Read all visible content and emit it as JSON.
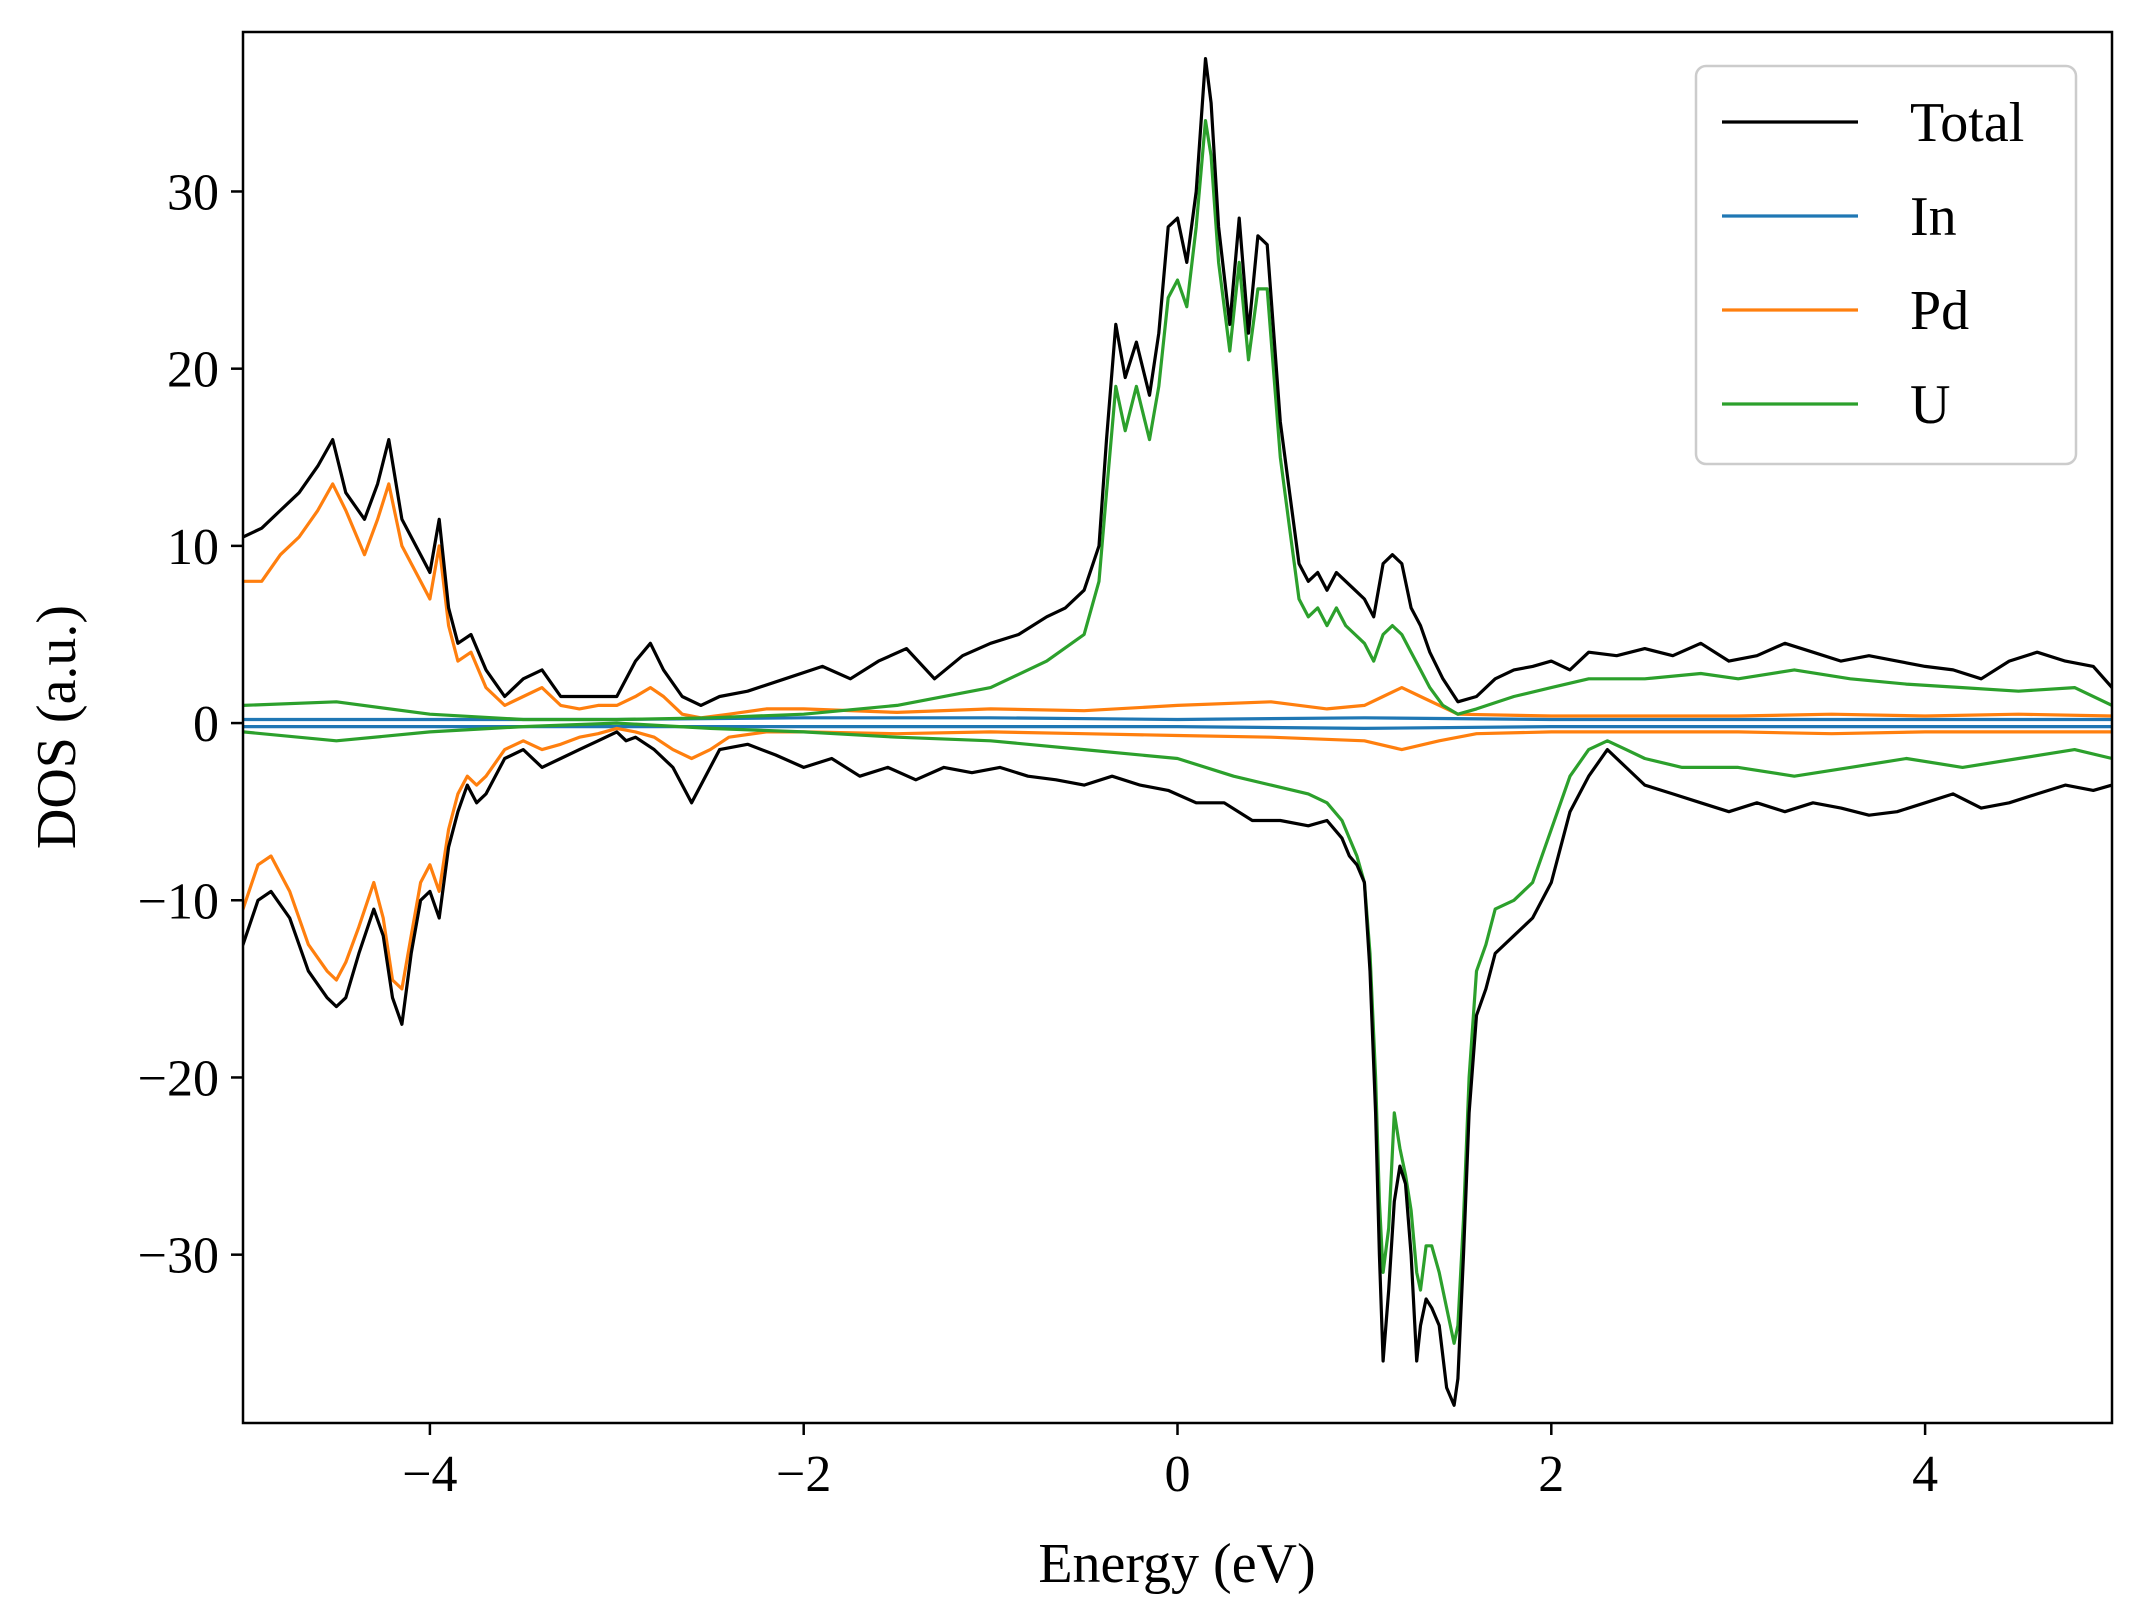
{
  "chart_data": {
    "type": "line",
    "title": "",
    "xlabel": "Energy (eV)",
    "ylabel": "DOS (a.u.)",
    "xlim": [
      -5,
      5
    ],
    "ylim": [
      -39.5,
      39
    ],
    "xticks": [
      -4,
      -2,
      0,
      2,
      4
    ],
    "yticks": [
      -30,
      -20,
      -10,
      0,
      10,
      20,
      30
    ],
    "xtick_labels": [
      "−4",
      "−2",
      "0",
      "2",
      "4"
    ],
    "ytick_labels": [
      "−30",
      "−20",
      "−10",
      "0",
      "10",
      "20",
      "30"
    ],
    "grid": false,
    "legend_position": "top-right",
    "series": [
      {
        "name": "Total",
        "color": "#000000",
        "up": {
          "x": [
            -5.0,
            -4.9,
            -4.8,
            -4.7,
            -4.6,
            -4.52,
            -4.45,
            -4.35,
            -4.28,
            -4.22,
            -4.15,
            -4.05,
            -4.0,
            -3.95,
            -3.9,
            -3.85,
            -3.78,
            -3.7,
            -3.6,
            -3.5,
            -3.4,
            -3.3,
            -3.2,
            -3.1,
            -3.0,
            -2.9,
            -2.82,
            -2.75,
            -2.65,
            -2.55,
            -2.45,
            -2.3,
            -2.1,
            -1.9,
            -1.75,
            -1.6,
            -1.45,
            -1.3,
            -1.15,
            -1.0,
            -0.85,
            -0.7,
            -0.6,
            -0.5,
            -0.42,
            -0.38,
            -0.33,
            -0.28,
            -0.22,
            -0.15,
            -0.1,
            -0.05,
            0.0,
            0.05,
            0.1,
            0.15,
            0.18,
            0.22,
            0.28,
            0.33,
            0.38,
            0.43,
            0.48,
            0.55,
            0.6,
            0.65,
            0.7,
            0.75,
            0.8,
            0.85,
            0.9,
            0.95,
            1.0,
            1.05,
            1.1,
            1.15,
            1.2,
            1.25,
            1.3,
            1.35,
            1.42,
            1.5,
            1.6,
            1.7,
            1.8,
            1.9,
            2.0,
            2.1,
            2.2,
            2.35,
            2.5,
            2.65,
            2.8,
            2.95,
            3.1,
            3.25,
            3.4,
            3.55,
            3.7,
            3.85,
            4.0,
            4.15,
            4.3,
            4.45,
            4.6,
            4.75,
            4.9,
            5.0
          ],
          "y": [
            10.5,
            11.0,
            12.0,
            13.0,
            14.5,
            16.0,
            13.0,
            11.5,
            13.5,
            16.0,
            11.5,
            9.5,
            8.5,
            11.5,
            6.5,
            4.5,
            5.0,
            3.0,
            1.5,
            2.5,
            3.0,
            1.5,
            1.5,
            1.5,
            1.5,
            3.5,
            4.5,
            3.0,
            1.5,
            1.0,
            1.5,
            1.8,
            2.5,
            3.2,
            2.5,
            3.5,
            4.2,
            2.5,
            3.8,
            4.5,
            5.0,
            6.0,
            6.5,
            7.5,
            10.0,
            16.0,
            22.5,
            19.5,
            21.5,
            18.5,
            22.0,
            28.0,
            28.5,
            26.0,
            30.0,
            37.5,
            35.0,
            28.0,
            22.5,
            28.5,
            22.0,
            27.5,
            27.0,
            17.0,
            13.0,
            9.0,
            8.0,
            8.5,
            7.5,
            8.5,
            8.0,
            7.5,
            7.0,
            6.0,
            9.0,
            9.5,
            9.0,
            6.5,
            5.5,
            4.0,
            2.5,
            1.2,
            1.5,
            2.5,
            3.0,
            3.2,
            3.5,
            3.0,
            4.0,
            3.8,
            4.2,
            3.8,
            4.5,
            3.5,
            3.8,
            4.5,
            4.0,
            3.5,
            3.8,
            3.5,
            3.2,
            3.0,
            2.5,
            3.5,
            4.0,
            3.5,
            3.2,
            2.0
          ]
        },
        "down": {
          "x": [
            -5.0,
            -4.92,
            -4.85,
            -4.75,
            -4.65,
            -4.55,
            -4.5,
            -4.45,
            -4.38,
            -4.3,
            -4.25,
            -4.2,
            -4.15,
            -4.1,
            -4.05,
            -4.0,
            -3.95,
            -3.9,
            -3.85,
            -3.8,
            -3.75,
            -3.7,
            -3.6,
            -3.5,
            -3.4,
            -3.3,
            -3.2,
            -3.1,
            -3.0,
            -2.95,
            -2.9,
            -2.8,
            -2.7,
            -2.6,
            -2.55,
            -2.45,
            -2.3,
            -2.15,
            -2.0,
            -1.85,
            -1.7,
            -1.55,
            -1.4,
            -1.25,
            -1.1,
            -0.95,
            -0.8,
            -0.65,
            -0.5,
            -0.35,
            -0.2,
            -0.05,
            0.1,
            0.25,
            0.4,
            0.55,
            0.7,
            0.8,
            0.88,
            0.92,
            0.96,
            1.0,
            1.03,
            1.06,
            1.08,
            1.1,
            1.13,
            1.16,
            1.19,
            1.22,
            1.25,
            1.28,
            1.3,
            1.33,
            1.36,
            1.4,
            1.44,
            1.48,
            1.5,
            1.53,
            1.56,
            1.6,
            1.65,
            1.7,
            1.8,
            1.9,
            2.0,
            2.1,
            2.2,
            2.3,
            2.4,
            2.5,
            2.65,
            2.8,
            2.95,
            3.1,
            3.25,
            3.4,
            3.55,
            3.7,
            3.85,
            4.0,
            4.15,
            4.3,
            4.45,
            4.6,
            4.75,
            4.9,
            5.0
          ],
          "y": [
            -12.5,
            -10.0,
            -9.5,
            -11.0,
            -14.0,
            -15.5,
            -16.0,
            -15.5,
            -13.0,
            -10.5,
            -12.0,
            -15.5,
            -17.0,
            -13.0,
            -10.0,
            -9.5,
            -11.0,
            -7.0,
            -5.0,
            -3.5,
            -4.5,
            -4.0,
            -2.0,
            -1.5,
            -2.5,
            -2.0,
            -1.5,
            -1.0,
            -0.5,
            -1.0,
            -0.8,
            -1.5,
            -2.5,
            -4.5,
            -3.5,
            -1.5,
            -1.2,
            -1.8,
            -2.5,
            -2.0,
            -3.0,
            -2.5,
            -3.2,
            -2.5,
            -2.8,
            -2.5,
            -3.0,
            -3.2,
            -3.5,
            -3.0,
            -3.5,
            -3.8,
            -4.5,
            -4.5,
            -5.5,
            -5.5,
            -5.8,
            -5.5,
            -6.5,
            -7.5,
            -8.0,
            -9.0,
            -14.0,
            -22.0,
            -30.0,
            -36.0,
            -32.0,
            -27.0,
            -25.0,
            -26.0,
            -30.0,
            -36.0,
            -34.0,
            -32.5,
            -33.0,
            -34.0,
            -37.5,
            -38.5,
            -37.0,
            -30.0,
            -22.0,
            -16.5,
            -15.0,
            -13.0,
            -12.0,
            -11.0,
            -9.0,
            -5.0,
            -3.0,
            -1.5,
            -2.5,
            -3.5,
            -4.0,
            -4.5,
            -5.0,
            -4.5,
            -5.0,
            -4.5,
            -4.8,
            -5.2,
            -5.0,
            -4.5,
            -4.0,
            -4.8,
            -4.5,
            -4.0,
            -3.5,
            -3.8,
            -3.5
          ]
        }
      },
      {
        "name": "In",
        "color": "#1f77b4",
        "up": {
          "x": [
            -5.0,
            -4.0,
            -3.0,
            -2.0,
            -1.0,
            0.0,
            1.0,
            2.0,
            3.0,
            4.0,
            5.0
          ],
          "y": [
            0.2,
            0.2,
            0.2,
            0.3,
            0.3,
            0.2,
            0.3,
            0.2,
            0.2,
            0.2,
            0.2
          ]
        },
        "down": {
          "x": [
            -5.0,
            -4.0,
            -3.0,
            -2.0,
            -1.0,
            0.0,
            1.0,
            2.0,
            3.0,
            4.0,
            5.0
          ],
          "y": [
            -0.2,
            -0.2,
            -0.2,
            -0.2,
            -0.2,
            -0.2,
            -0.3,
            -0.2,
            -0.2,
            -0.2,
            -0.2
          ]
        }
      },
      {
        "name": "Pd",
        "color": "#ff7f0e",
        "up": {
          "x": [
            -5.0,
            -4.9,
            -4.8,
            -4.7,
            -4.6,
            -4.52,
            -4.45,
            -4.35,
            -4.28,
            -4.22,
            -4.15,
            -4.05,
            -4.0,
            -3.95,
            -3.9,
            -3.85,
            -3.78,
            -3.7,
            -3.6,
            -3.5,
            -3.4,
            -3.3,
            -3.2,
            -3.1,
            -3.0,
            -2.9,
            -2.82,
            -2.75,
            -2.65,
            -2.55,
            -2.4,
            -2.2,
            -2.0,
            -1.5,
            -1.0,
            -0.5,
            0.0,
            0.5,
            0.8,
            1.0,
            1.1,
            1.2,
            1.3,
            1.5,
            2.0,
            2.5,
            3.0,
            3.5,
            4.0,
            4.5,
            5.0
          ],
          "y": [
            8.0,
            8.0,
            9.5,
            10.5,
            12.0,
            13.5,
            12.0,
            9.5,
            11.5,
            13.5,
            10.0,
            8.0,
            7.0,
            10.0,
            5.5,
            3.5,
            4.0,
            2.0,
            1.0,
            1.5,
            2.0,
            1.0,
            0.8,
            1.0,
            1.0,
            1.5,
            2.0,
            1.5,
            0.5,
            0.3,
            0.5,
            0.8,
            0.8,
            0.6,
            0.8,
            0.7,
            1.0,
            1.2,
            0.8,
            1.0,
            1.5,
            2.0,
            1.5,
            0.5,
            0.4,
            0.4,
            0.4,
            0.5,
            0.4,
            0.5,
            0.4
          ]
        },
        "down": {
          "x": [
            -5.0,
            -4.92,
            -4.85,
            -4.75,
            -4.65,
            -4.55,
            -4.5,
            -4.45,
            -4.38,
            -4.3,
            -4.25,
            -4.2,
            -4.15,
            -4.1,
            -4.05,
            -4.0,
            -3.95,
            -3.9,
            -3.85,
            -3.8,
            -3.75,
            -3.7,
            -3.6,
            -3.5,
            -3.4,
            -3.3,
            -3.2,
            -3.1,
            -3.0,
            -2.9,
            -2.8,
            -2.7,
            -2.6,
            -2.5,
            -2.4,
            -2.2,
            -2.0,
            -1.5,
            -1.0,
            -0.5,
            0.0,
            0.5,
            1.0,
            1.2,
            1.4,
            1.6,
            2.0,
            2.5,
            3.0,
            3.5,
            4.0,
            4.5,
            5.0
          ],
          "y": [
            -10.5,
            -8.0,
            -7.5,
            -9.5,
            -12.5,
            -14.0,
            -14.5,
            -13.5,
            -11.5,
            -9.0,
            -11.0,
            -14.5,
            -15.0,
            -12.0,
            -9.0,
            -8.0,
            -9.5,
            -6.0,
            -4.0,
            -3.0,
            -3.5,
            -3.0,
            -1.5,
            -1.0,
            -1.5,
            -1.2,
            -0.8,
            -0.6,
            -0.3,
            -0.5,
            -0.8,
            -1.5,
            -2.0,
            -1.5,
            -0.8,
            -0.5,
            -0.5,
            -0.6,
            -0.5,
            -0.6,
            -0.7,
            -0.8,
            -1.0,
            -1.5,
            -1.0,
            -0.6,
            -0.5,
            -0.5,
            -0.5,
            -0.6,
            -0.5,
            -0.5,
            -0.5
          ]
        }
      },
      {
        "name": "U",
        "color": "#2ca02c",
        "up": {
          "x": [
            -5.0,
            -4.5,
            -4.0,
            -3.5,
            -3.0,
            -2.5,
            -2.0,
            -1.5,
            -1.0,
            -0.7,
            -0.5,
            -0.42,
            -0.38,
            -0.33,
            -0.28,
            -0.22,
            -0.15,
            -0.1,
            -0.05,
            0.0,
            0.05,
            0.1,
            0.15,
            0.18,
            0.22,
            0.28,
            0.33,
            0.38,
            0.43,
            0.48,
            0.55,
            0.6,
            0.65,
            0.7,
            0.75,
            0.8,
            0.85,
            0.9,
            0.95,
            1.0,
            1.05,
            1.1,
            1.15,
            1.2,
            1.25,
            1.3,
            1.35,
            1.42,
            1.5,
            1.6,
            1.8,
            2.0,
            2.2,
            2.5,
            2.8,
            3.0,
            3.3,
            3.6,
            3.9,
            4.2,
            4.5,
            4.8,
            5.0
          ],
          "y": [
            1.0,
            1.2,
            0.5,
            0.2,
            0.2,
            0.3,
            0.5,
            1.0,
            2.0,
            3.5,
            5.0,
            8.0,
            13.0,
            19.0,
            16.5,
            19.0,
            16.0,
            19.0,
            24.0,
            25.0,
            23.5,
            28.0,
            34.0,
            32.0,
            26.0,
            21.0,
            26.0,
            20.5,
            24.5,
            24.5,
            15.0,
            11.0,
            7.0,
            6.0,
            6.5,
            5.5,
            6.5,
            5.5,
            5.0,
            4.5,
            3.5,
            5.0,
            5.5,
            5.0,
            4.0,
            3.0,
            2.0,
            1.0,
            0.5,
            0.8,
            1.5,
            2.0,
            2.5,
            2.5,
            2.8,
            2.5,
            3.0,
            2.5,
            2.2,
            2.0,
            1.8,
            2.0,
            1.0
          ]
        },
        "down": {
          "x": [
            -5.0,
            -4.5,
            -4.0,
            -3.5,
            -3.0,
            -2.5,
            -2.0,
            -1.5,
            -1.0,
            -0.5,
            0.0,
            0.3,
            0.5,
            0.7,
            0.8,
            0.88,
            0.92,
            0.96,
            1.0,
            1.03,
            1.06,
            1.08,
            1.1,
            1.13,
            1.16,
            1.19,
            1.22,
            1.25,
            1.28,
            1.3,
            1.33,
            1.36,
            1.4,
            1.44,
            1.48,
            1.5,
            1.53,
            1.56,
            1.6,
            1.65,
            1.7,
            1.8,
            1.9,
            2.0,
            2.1,
            2.2,
            2.3,
            2.4,
            2.5,
            2.7,
            3.0,
            3.3,
            3.6,
            3.9,
            4.2,
            4.5,
            4.8,
            5.0
          ],
          "y": [
            -0.5,
            -1.0,
            -0.5,
            -0.2,
            0.0,
            -0.3,
            -0.5,
            -0.8,
            -1.0,
            -1.5,
            -2.0,
            -3.0,
            -3.5,
            -4.0,
            -4.5,
            -5.5,
            -6.5,
            -7.5,
            -9.0,
            -13.0,
            -20.0,
            -27.0,
            -31.0,
            -28.5,
            -22.0,
            -24.0,
            -25.5,
            -27.5,
            -31.0,
            -32.0,
            -29.5,
            -29.5,
            -31.0,
            -33.0,
            -35.0,
            -34.0,
            -28.0,
            -20.0,
            -14.0,
            -12.5,
            -10.5,
            -10.0,
            -9.0,
            -6.0,
            -3.0,
            -1.5,
            -1.0,
            -1.5,
            -2.0,
            -2.5,
            -2.5,
            -3.0,
            -2.5,
            -2.0,
            -2.5,
            -2.0,
            -1.5,
            -2.0
          ]
        }
      }
    ]
  }
}
